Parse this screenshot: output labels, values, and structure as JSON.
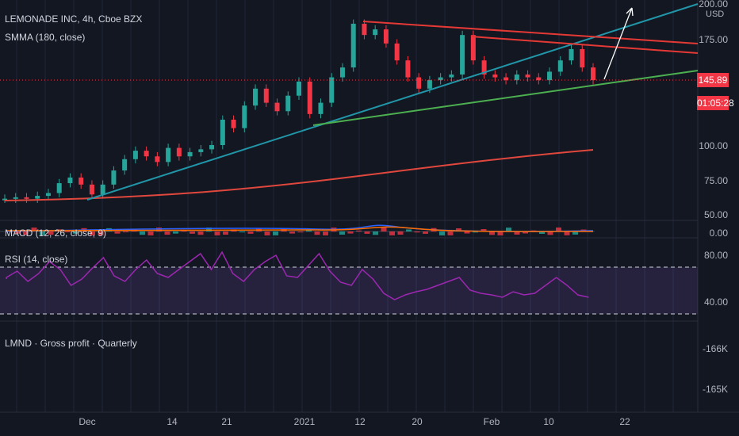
{
  "header": {
    "symbol_line": "LEMONADE INC, 4h, Cboe BZX",
    "indicator_smma": "SMMA (180, close)"
  },
  "price_axis": {
    "currency": "USD",
    "labels": [
      "200.00",
      "175.00",
      "100.00",
      "75.00",
      "50.00"
    ]
  },
  "current_price": {
    "value": "145.89",
    "countdown": "01:05:28"
  },
  "panes": {
    "macd_label": "MACD (12, 26, close, 9)",
    "macd_axis": "0.00",
    "rsi_label": "RSI (14, close)",
    "rsi_axis": [
      "80.00",
      "40.00"
    ],
    "gross_label": "LMND · Gross profit · Quarterly",
    "gross_axis": [
      "-166K",
      "-165K"
    ]
  },
  "time_axis": [
    "Dec",
    "14",
    "21",
    "2021",
    "12",
    "20",
    "Feb",
    "10",
    "22"
  ],
  "colors": {
    "background": "#131722",
    "up": "#26a69a",
    "down": "#f23645",
    "trend_blue": "#2196a8",
    "trend_green": "#4caf50",
    "trend_red": "#e53935",
    "smma": "#e0473d",
    "rsi": "#9c27b0"
  },
  "chart_data": {
    "type": "candlestick",
    "timeframe": "4h",
    "smma_period": 180,
    "price_close_path": [
      62,
      63,
      62,
      64,
      66,
      73,
      77,
      72,
      65,
      72,
      82,
      90,
      96,
      92,
      88,
      98,
      92,
      95,
      97,
      100,
      118,
      112,
      128,
      140,
      130,
      124,
      135,
      145,
      122,
      130,
      148,
      155,
      186,
      178,
      182,
      172,
      160,
      148,
      140,
      146,
      148,
      150,
      178,
      160,
      150,
      148,
      146,
      150,
      148,
      146,
      152,
      160,
      168,
      155,
      146
    ],
    "ylim": [
      50,
      200
    ]
  }
}
